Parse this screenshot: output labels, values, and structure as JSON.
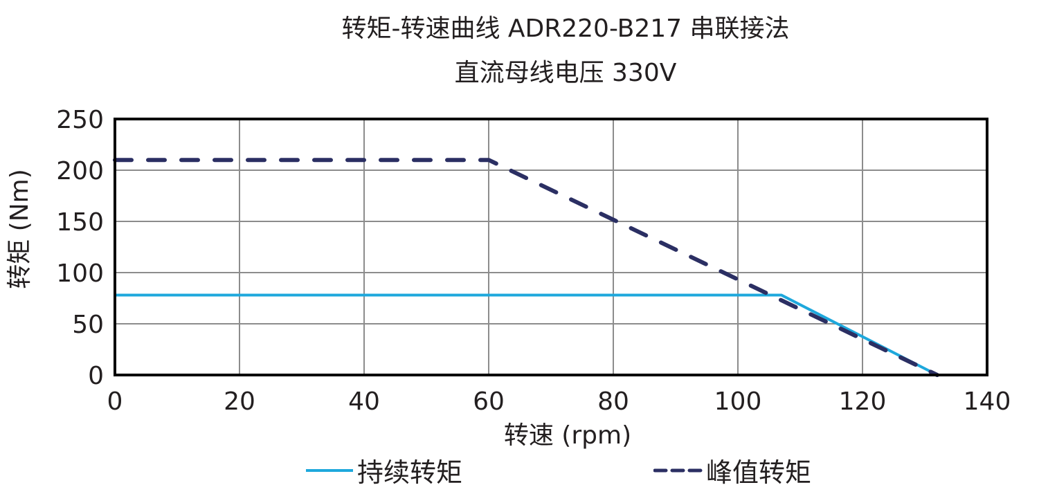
{
  "title": {
    "line1": "转矩-转速曲线 ADR220-B217 串联接法",
    "line2": "直流母线电压 330V"
  },
  "axes": {
    "xlabel": "转速 (rpm)",
    "ylabel": "转矩 (Nm)",
    "xticks": [
      "0",
      "20",
      "40",
      "60",
      "80",
      "100",
      "120",
      "140"
    ],
    "yticks": [
      "0",
      "50",
      "100",
      "150",
      "200",
      "250"
    ]
  },
  "legend": {
    "continuous": "持续转矩",
    "peak": "峰值转矩"
  },
  "colors": {
    "continuous": "#1ea8dc",
    "peak": "#2b2f63",
    "grid": "#8c8c8c",
    "frame": "#000000"
  },
  "chart_data": {
    "type": "line",
    "title": "转矩-转速曲线 ADR220-B217 串联接法 / 直流母线电压 330V",
    "xlabel": "转速 (rpm)",
    "ylabel": "转矩 (Nm)",
    "xlim": [
      0,
      140
    ],
    "ylim": [
      0,
      250
    ],
    "xticks": [
      0,
      20,
      40,
      60,
      80,
      100,
      120,
      140
    ],
    "yticks": [
      0,
      50,
      100,
      150,
      200,
      250
    ],
    "grid": true,
    "legend_position": "bottom",
    "series": [
      {
        "name": "持续转矩",
        "style": "solid",
        "color": "#1ea8dc",
        "x": [
          0,
          107,
          132
        ],
        "y": [
          78,
          78,
          0
        ]
      },
      {
        "name": "峰值转矩",
        "style": "dashed",
        "color": "#2b2f63",
        "x": [
          0,
          60,
          132
        ],
        "y": [
          210,
          210,
          0
        ]
      }
    ]
  }
}
